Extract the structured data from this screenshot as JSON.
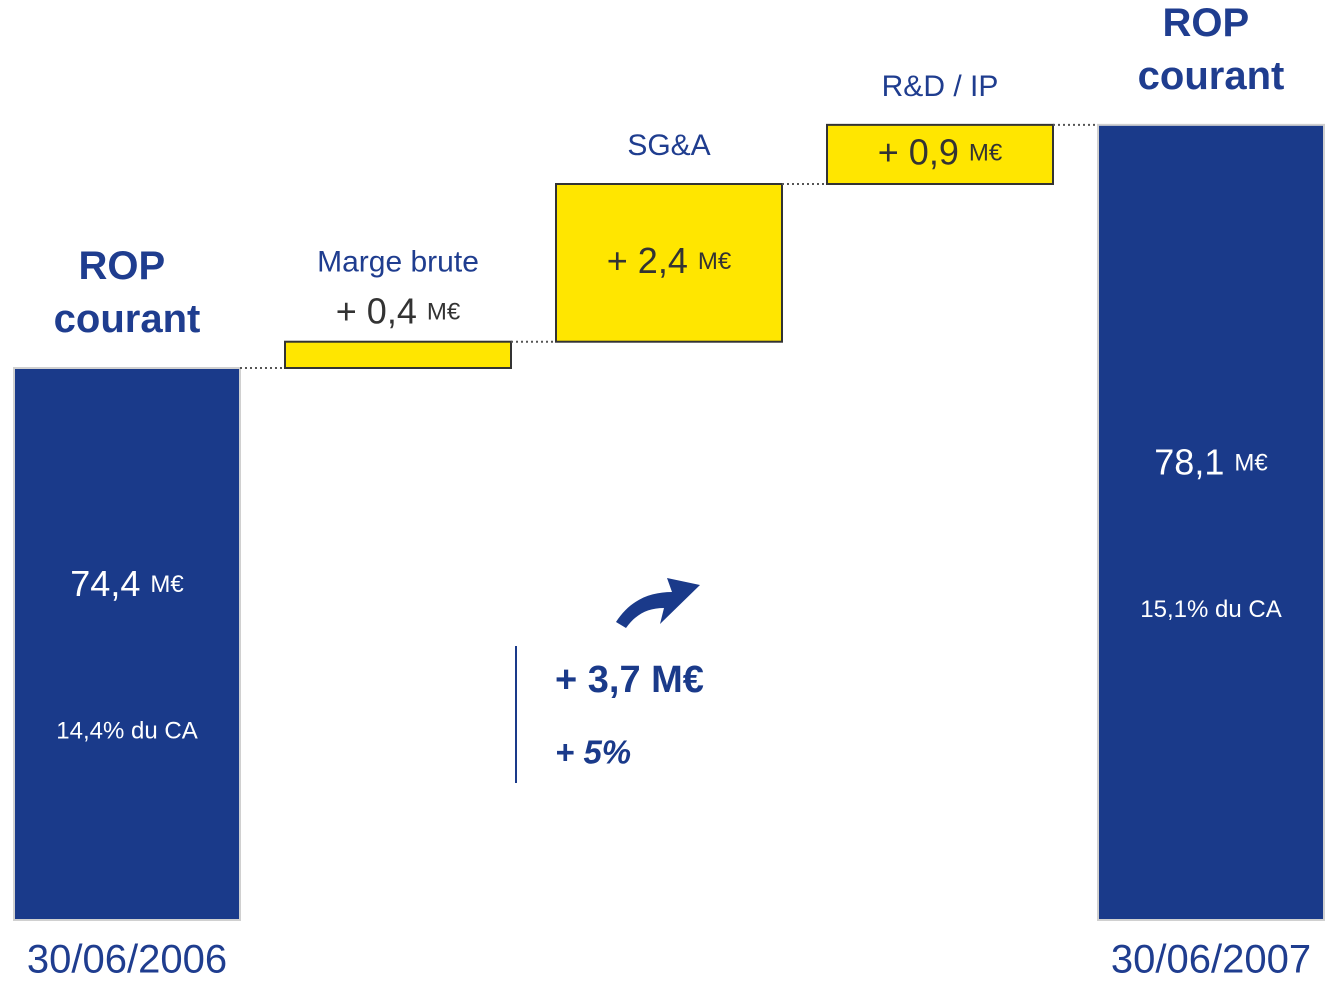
{
  "chart_data": {
    "type": "waterfall",
    "categories": [
      "ROP courant",
      "Marge brute",
      "SG&A",
      "R&D / IP",
      "ROP courant"
    ],
    "measure": [
      "absolute",
      "relative",
      "relative",
      "relative",
      "total"
    ],
    "values": [
      74.4,
      0.4,
      2.4,
      0.9,
      78.1
    ],
    "value_labels": [
      "74,4",
      "+ 0,4",
      "+ 2,4",
      "+ 0,9",
      "78,1"
    ],
    "unit": "M€",
    "sublabels": [
      "14,4% du CA",
      null,
      null,
      null,
      "15,1% du CA"
    ],
    "x_labels": [
      "30/06/2006",
      null,
      null,
      null,
      "30/06/2007"
    ],
    "colors": {
      "total": "#1a3a8a",
      "relative": "#ffe600"
    },
    "ylim": [
      66,
      80
    ],
    "annotations": [
      "+ 3,7 M€",
      "+ 5%"
    ]
  }
}
